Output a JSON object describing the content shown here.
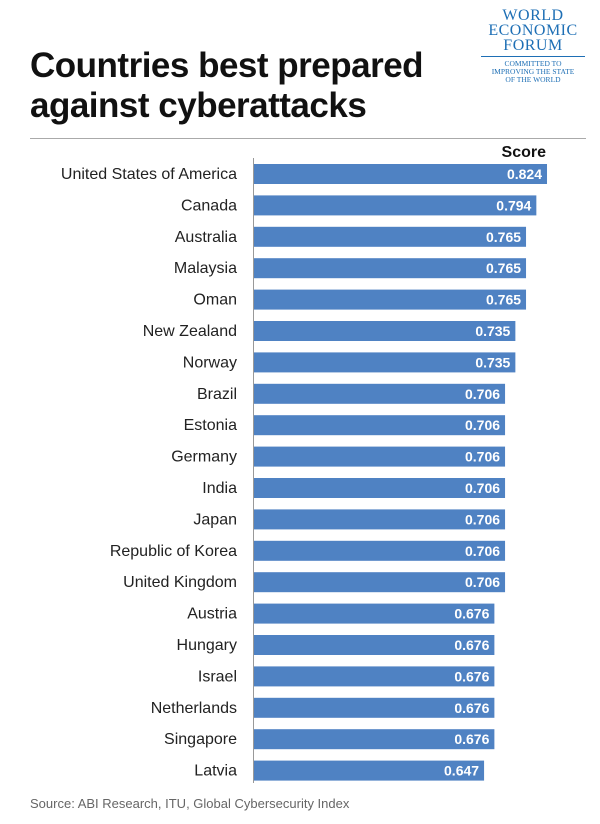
{
  "header": {
    "title": "Countries best prepared against cyberattacks",
    "logo": {
      "lines": [
        "WORLD",
        "ECONOMIC",
        "FORUM"
      ],
      "tagline": [
        "COMMITTED TO",
        "IMPROVING THE STATE",
        "OF THE WORLD"
      ],
      "color": "#1e6fb5"
    }
  },
  "chart_data": {
    "type": "bar",
    "orientation": "horizontal",
    "value_header": "Score",
    "categories": [
      "United States of America",
      "Canada",
      "Australia",
      "Malaysia",
      "Oman",
      "New Zealand",
      "Norway",
      "Brazil",
      "Estonia",
      "Germany",
      "India",
      "Japan",
      "Republic of Korea",
      "United Kingdom",
      "Austria",
      "Hungary",
      "Israel",
      "Netherlands",
      "Singapore",
      "Latvia"
    ],
    "values": [
      0.824,
      0.794,
      0.765,
      0.765,
      0.765,
      0.735,
      0.735,
      0.706,
      0.706,
      0.706,
      0.706,
      0.706,
      0.706,
      0.706,
      0.676,
      0.676,
      0.676,
      0.676,
      0.676,
      0.647
    ],
    "value_labels": [
      "0.824",
      "0.794",
      "0.765",
      "0.765",
      "0.765",
      "0.735",
      "0.735",
      "0.706",
      "0.706",
      "0.706",
      "0.706",
      "0.706",
      "0.706",
      "0.706",
      "0.676",
      "0.676",
      "0.676",
      "0.676",
      "0.676",
      "0.647"
    ],
    "bar_color": "#4f82c3",
    "label_color": "#ffffff"
  },
  "footer": {
    "source": "Source: ABI Research, ITU, Global Cybersecurity Index"
  }
}
